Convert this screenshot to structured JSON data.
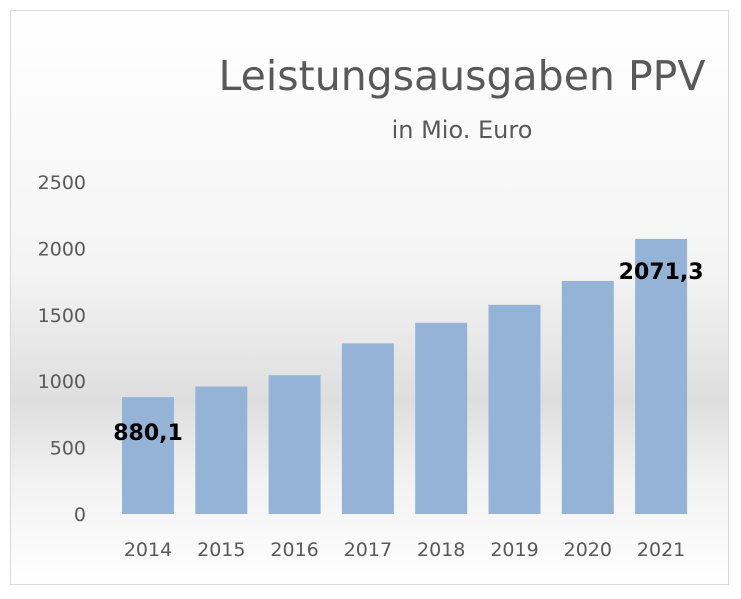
{
  "chart_data": {
    "type": "bar",
    "title": "Leistungsausgaben PPV",
    "subtitle": "in Mio. Euro",
    "xlabel": "",
    "ylabel": "",
    "categories": [
      "2014",
      "2015",
      "2016",
      "2017",
      "2018",
      "2019",
      "2020",
      "2021"
    ],
    "values": [
      880.1,
      960,
      1045,
      1285,
      1440,
      1575,
      1755,
      2071.3
    ],
    "ylim": [
      0,
      2500
    ],
    "yticks": [
      "0",
      "500",
      "1000",
      "1500",
      "2000",
      "2500"
    ],
    "data_labels": [
      {
        "index": 0,
        "text": "880,1"
      },
      {
        "index": 7,
        "text": "2071,3"
      }
    ],
    "grid": false,
    "legend": "none",
    "bar_color": "#95b3d7"
  }
}
